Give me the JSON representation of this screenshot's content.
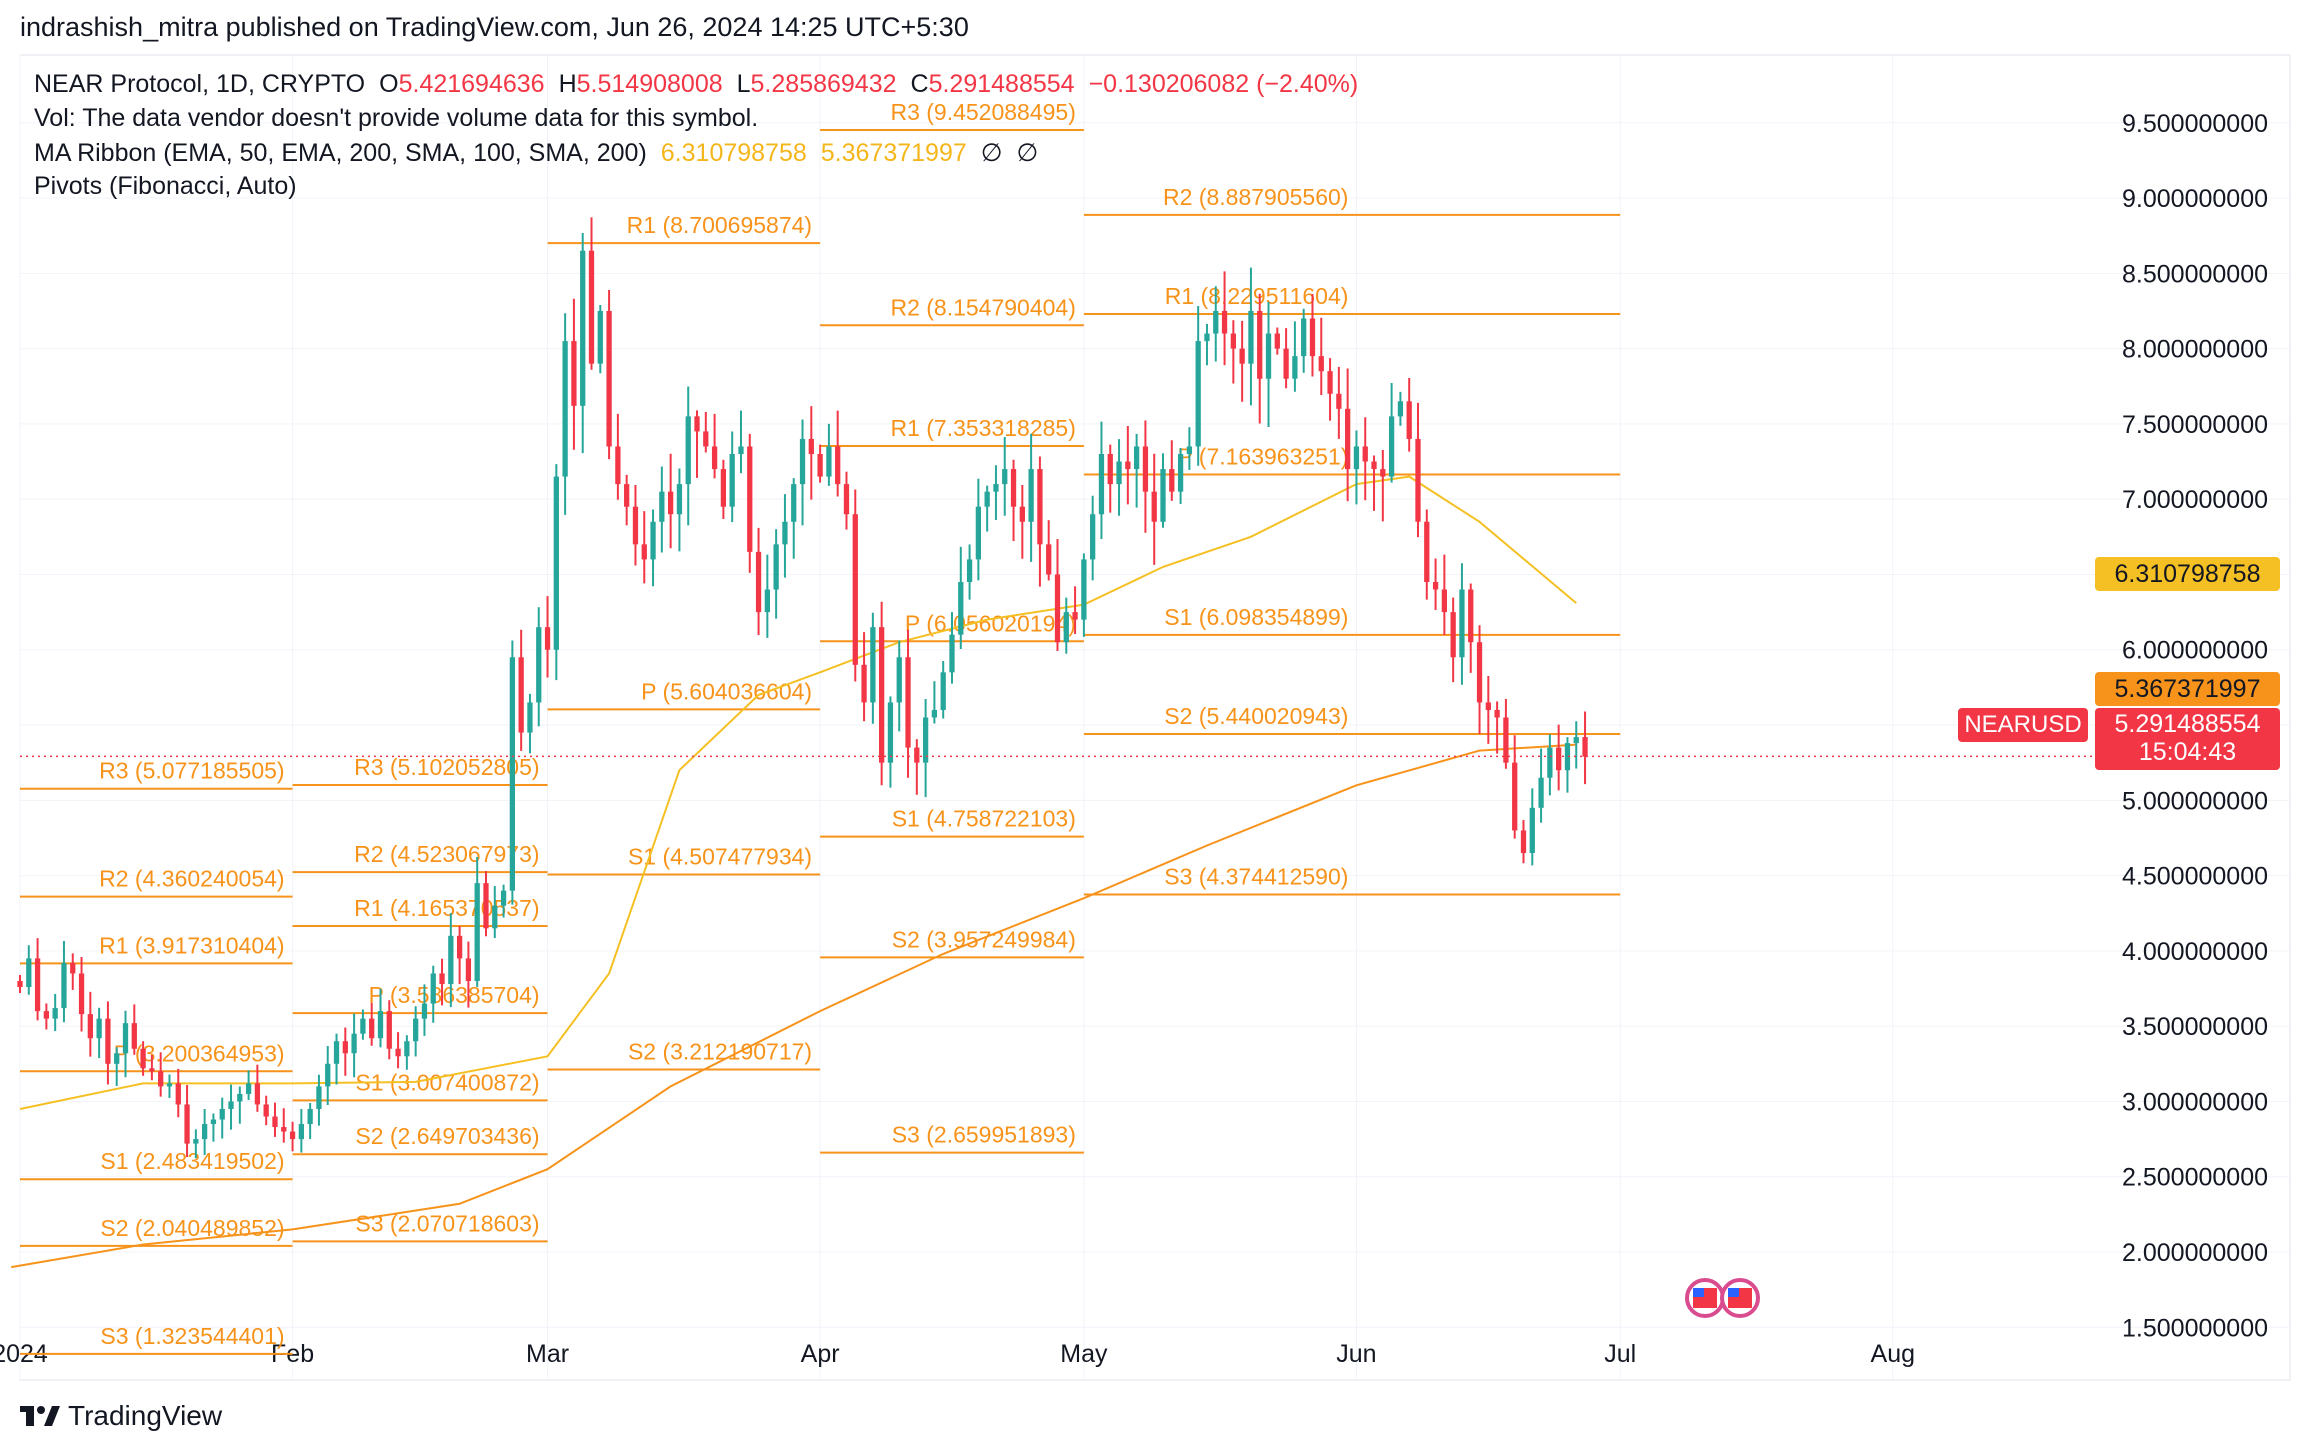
{
  "header": {
    "published": "indrashish_mitra published on TradingView.com, Jun 26, 2024 14:25 UTC+5:30"
  },
  "legend": {
    "symbol_line": "NEAR Protocol, 1D, CRYPTO",
    "o_label": "O",
    "o_value": "5.421694636",
    "h_label": "H",
    "h_value": "5.514908008",
    "l_label": "L",
    "l_value": "5.285869432",
    "c_label": "C",
    "c_value": "5.291488554",
    "change": "−0.130206082 (−2.40%)",
    "vol_line": "Vol: The data vendor doesn't provide volume data for this symbol.",
    "ma_label": "MA Ribbon (EMA, 50, EMA, 200, SMA, 100, SMA, 200)",
    "ma_v1": "6.310798758",
    "ma_v2": "5.367371997",
    "ma_na1": "∅",
    "ma_na2": "∅",
    "pivots_label": "Pivots (Fibonacci, Auto)"
  },
  "price_tags": {
    "ema50": "6.310798758",
    "ema200": "5.367371997",
    "last_price": "5.291488554",
    "countdown": "15:04:43",
    "symbol": "NEARUSD"
  },
  "brand": {
    "name": "TradingView"
  },
  "colors": {
    "up": "#26a69a",
    "down": "#f23645",
    "pivot": "#f7931a",
    "ma": "#f5c023",
    "ema_tag": "#f5c023",
    "ema200_tag": "#f7931a",
    "grid": "#f0f3fa"
  },
  "chart_data": {
    "type": "candlestick",
    "title": "NEAR Protocol, 1D, CRYPTO",
    "y_axis": {
      "ticks": [
        1.5,
        2.0,
        2.5,
        3.0,
        3.5,
        4.0,
        4.5,
        5.0,
        5.5,
        6.0,
        6.5,
        7.0,
        7.5,
        8.0,
        8.5,
        9.0,
        9.5
      ],
      "tick_labels": [
        "1.500000000",
        "2.000000000",
        "2.500000000",
        "3.000000000",
        "3.500000000",
        "4.000000000",
        "4.500000000",
        "5.000000000",
        "5.500000000",
        "6.000000000",
        "6.500000000",
        "7.000000000",
        "7.500000000",
        "8.000000000",
        "8.500000000",
        "9.000000000",
        "9.500000000"
      ],
      "range": [
        1.15,
        9.95
      ]
    },
    "x_axis": {
      "labels": [
        {
          "text": "2024",
          "date": "2024-01-01"
        },
        {
          "text": "Feb",
          "date": "2024-02-01"
        },
        {
          "text": "Mar",
          "date": "2024-03-01"
        },
        {
          "text": "Apr",
          "date": "2024-04-01"
        },
        {
          "text": "May",
          "date": "2024-05-01"
        },
        {
          "text": "Jun",
          "date": "2024-06-01"
        },
        {
          "text": "Jul",
          "date": "2024-07-01"
        },
        {
          "text": "Aug",
          "date": "2024-08-01"
        }
      ],
      "range": [
        "2024-01-01",
        "2024-08-24"
      ]
    },
    "closes": [
      3.76,
      3.95,
      3.6,
      3.55,
      3.62,
      3.92,
      3.85,
      3.58,
      3.42,
      3.55,
      3.25,
      3.32,
      3.52,
      3.35,
      3.22,
      3.2,
      3.1,
      3.12,
      2.98,
      2.72,
      2.75,
      2.85,
      2.88,
      2.95,
      3.0,
      3.05,
      3.12,
      2.98,
      2.9,
      2.83,
      2.8,
      2.75,
      2.85,
      2.95,
      3.1,
      3.25,
      3.4,
      3.32,
      3.45,
      3.55,
      3.42,
      3.6,
      3.35,
      3.3,
      3.4,
      3.55,
      3.65,
      3.85,
      3.78,
      4.1,
      3.95,
      3.8,
      4.45,
      4.15,
      4.3,
      4.4,
      5.95,
      5.45,
      5.65,
      6.15,
      6.0,
      7.15,
      8.05,
      7.62,
      8.65,
      7.9,
      8.25,
      7.35,
      7.1,
      6.95,
      6.7,
      6.6,
      6.85,
      7.05,
      6.9,
      7.1,
      7.55,
      7.45,
      7.35,
      7.2,
      6.95,
      7.3,
      7.35,
      6.65,
      6.25,
      6.4,
      6.7,
      6.85,
      7.1,
      7.4,
      7.3,
      7.15,
      7.35,
      7.1,
      6.9,
      5.9,
      5.65,
      6.15,
      5.25,
      5.65,
      5.95,
      5.35,
      5.25,
      5.55,
      5.6,
      5.85,
      6.1,
      6.45,
      6.6,
      6.95,
      7.05,
      7.1,
      7.2,
      6.95,
      6.85,
      7.2,
      6.7,
      6.5,
      6.05,
      6.25,
      6.2,
      6.6,
      6.9,
      7.3,
      7.1,
      7.25,
      7.2,
      7.35,
      7.05,
      6.85,
      7.2,
      7.05,
      7.3,
      7.35,
      8.05,
      8.1,
      8.25,
      8.1,
      8.0,
      7.9,
      8.25,
      7.8,
      8.1,
      8.0,
      7.8,
      7.95,
      8.2,
      7.95,
      7.85,
      7.7,
      7.6,
      7.2,
      7.35,
      7.25,
      7.2,
      7.15,
      7.55,
      7.65,
      7.4,
      6.85,
      6.45,
      6.4,
      6.25,
      5.95,
      6.4,
      6.05,
      5.65,
      5.6,
      5.55,
      5.25,
      4.8,
      4.65,
      4.95,
      5.15,
      5.35,
      5.2,
      5.38,
      5.42,
      5.29
    ],
    "series": [
      {
        "name": "EMA 50",
        "last_value": 6.310798758,
        "points": [
          {
            "x": "2024-01-01",
            "y": 2.95
          },
          {
            "x": "2024-01-15",
            "y": 3.12
          },
          {
            "x": "2024-02-01",
            "y": 3.12
          },
          {
            "x": "2024-02-15",
            "y": 3.13
          },
          {
            "x": "2024-03-01",
            "y": 3.3
          },
          {
            "x": "2024-03-08",
            "y": 3.85
          },
          {
            "x": "2024-03-16",
            "y": 5.2
          },
          {
            "x": "2024-03-25",
            "y": 5.7
          },
          {
            "x": "2024-04-01",
            "y": 5.85
          },
          {
            "x": "2024-04-10",
            "y": 6.05
          },
          {
            "x": "2024-04-20",
            "y": 6.2
          },
          {
            "x": "2024-05-01",
            "y": 6.3
          },
          {
            "x": "2024-05-10",
            "y": 6.55
          },
          {
            "x": "2024-05-20",
            "y": 6.75
          },
          {
            "x": "2024-06-01",
            "y": 7.1
          },
          {
            "x": "2024-06-07",
            "y": 7.15
          },
          {
            "x": "2024-06-15",
            "y": 6.85
          },
          {
            "x": "2024-06-26",
            "y": 6.31
          }
        ]
      },
      {
        "name": "EMA 200",
        "last_value": 5.367371997,
        "points": [
          {
            "x": "2023-12-31",
            "y": 1.9
          },
          {
            "x": "2024-01-15",
            "y": 2.05
          },
          {
            "x": "2024-02-01",
            "y": 2.15
          },
          {
            "x": "2024-02-20",
            "y": 2.32
          },
          {
            "x": "2024-03-01",
            "y": 2.55
          },
          {
            "x": "2024-03-15",
            "y": 3.1
          },
          {
            "x": "2024-04-01",
            "y": 3.6
          },
          {
            "x": "2024-04-15",
            "y": 3.98
          },
          {
            "x": "2024-05-01",
            "y": 4.35
          },
          {
            "x": "2024-05-15",
            "y": 4.7
          },
          {
            "x": "2024-06-01",
            "y": 5.1
          },
          {
            "x": "2024-06-15",
            "y": 5.33
          },
          {
            "x": "2024-06-26",
            "y": 5.37
          }
        ]
      }
    ],
    "pivots": [
      {
        "start": "2024-01-01",
        "end": "2024-02-01",
        "levels": [
          {
            "name": "R3",
            "value": 5.077185505,
            "label": "R3 (5.077185505)"
          },
          {
            "name": "R2",
            "value": 4.360240054,
            "label": "R2 (4.360240054)"
          },
          {
            "name": "R1",
            "value": 3.917310404,
            "label": "R1 (3.917310404)"
          },
          {
            "name": "P",
            "value": 3.200364953,
            "label": "P (3.200364953)"
          },
          {
            "name": "S1",
            "value": 2.483419502,
            "label": "S1 (2.483419502)"
          },
          {
            "name": "S2",
            "value": 2.040489852,
            "label": "S2 (2.040489852)"
          },
          {
            "name": "S3",
            "value": 1.323544401,
            "label": "S3 (1.323544401)"
          }
        ]
      },
      {
        "start": "2024-02-01",
        "end": "2024-03-01",
        "levels": [
          {
            "name": "R3",
            "value": 5.102052805,
            "label": "R3 (5.102052805)"
          },
          {
            "name": "R2",
            "value": 4.523067973,
            "label": "R2 (4.523067973)"
          },
          {
            "name": "R1",
            "value": 4.165370537,
            "label": "R1 (4.165370537)"
          },
          {
            "name": "P",
            "value": 3.586385704,
            "label": "P (3.586385704)"
          },
          {
            "name": "S1",
            "value": 3.007400872,
            "label": "S1 (3.007400872)"
          },
          {
            "name": "S2",
            "value": 2.649703436,
            "label": "S2 (2.649703436)"
          },
          {
            "name": "S3",
            "value": 2.070718603,
            "label": "S3 (2.070718603)"
          }
        ]
      },
      {
        "start": "2024-03-01",
        "end": "2024-04-01",
        "levels": [
          {
            "name": "R1",
            "value": 8.700695874,
            "label": "R1 (8.700695874)"
          },
          {
            "name": "P",
            "value": 5.604036604,
            "label": "P (5.604036604)"
          },
          {
            "name": "S1",
            "value": 4.507477934,
            "label": "S1 (4.507477934)"
          },
          {
            "name": "S2",
            "value": 3.212190717,
            "label": "S2 (3.212190717)"
          }
        ]
      },
      {
        "start": "2024-04-01",
        "end": "2024-05-01",
        "levels": [
          {
            "name": "R3",
            "value": 9.452088495,
            "label": "R3 (9.452088495)"
          },
          {
            "name": "R2",
            "value": 8.154790404,
            "label": "R2 (8.154790404)"
          },
          {
            "name": "R1",
            "value": 7.353318285,
            "label": "R1 (7.353318285)"
          },
          {
            "name": "P",
            "value": 6.056020194,
            "label": "P (6.056020194)"
          },
          {
            "name": "S1",
            "value": 4.758722103,
            "label": "S1 (4.758722103)"
          },
          {
            "name": "S2",
            "value": 3.957249984,
            "label": "S2 (3.957249984)"
          },
          {
            "name": "S3",
            "value": 2.659951893,
            "label": "S3 (2.659951893)"
          }
        ]
      },
      {
        "start": "2024-05-01",
        "end": "2024-06-01",
        "levels": [
          {
            "name": "R2",
            "value": 8.88790556,
            "label": "R2 (8.887905560)"
          },
          {
            "name": "R1",
            "value": 8.229511604,
            "label": "R1 (8.229511604)"
          },
          {
            "name": "P",
            "value": 7.163963251,
            "label": "P (7.163963251)"
          },
          {
            "name": "S1",
            "value": 6.098354899,
            "label": "S1 (6.098354899)"
          },
          {
            "name": "S2",
            "value": 5.440020943,
            "label": "S2 (5.440020943)"
          },
          {
            "name": "S3",
            "value": 4.37441259,
            "label": "S3 (4.374412590)"
          }
        ]
      }
    ],
    "pivot_line_jun": [
      {
        "value": 8.88790556
      },
      {
        "value": 8.229511604
      },
      {
        "value": 7.163963251
      },
      {
        "value": 6.098354899
      },
      {
        "value": 5.440020943
      },
      {
        "value": 4.37441259
      }
    ],
    "last_price": 5.291488554,
    "grid": true
  }
}
